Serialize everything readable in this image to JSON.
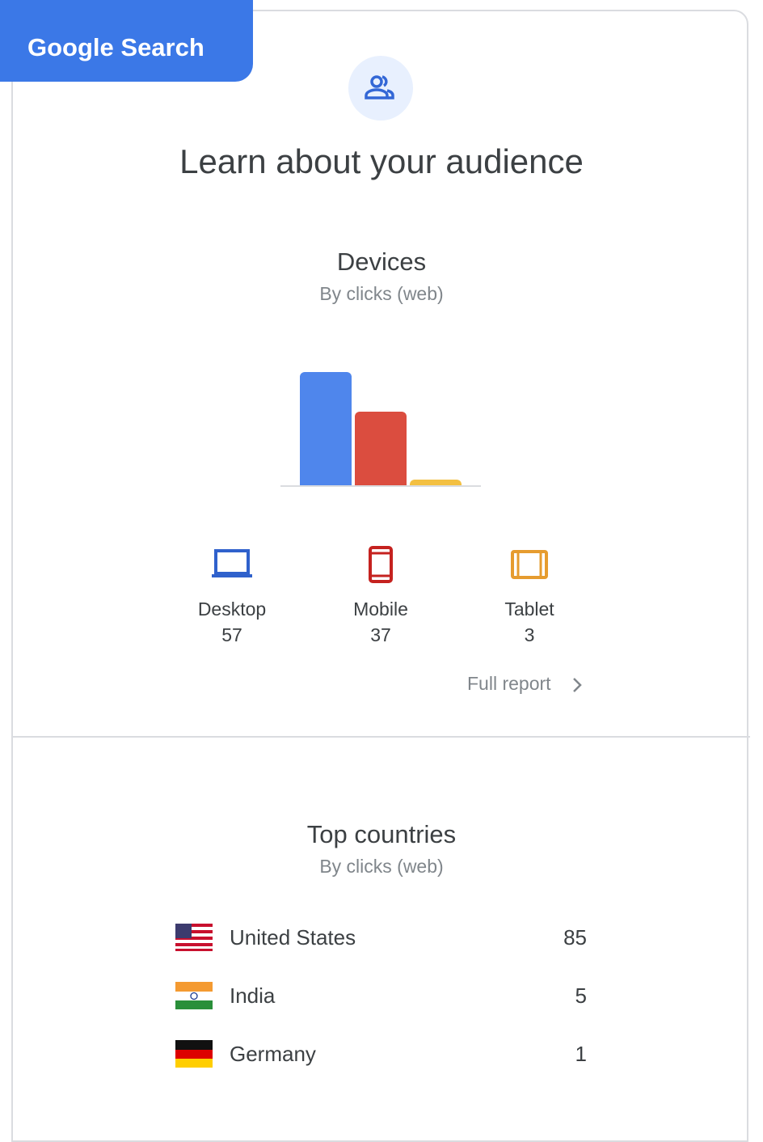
{
  "badge": "Google Search",
  "title": "Learn about your audience",
  "devices": {
    "title": "Devices",
    "subtitle": "By clicks (web)",
    "items": [
      {
        "label": "Desktop",
        "value": 57,
        "color": "#4f86ec"
      },
      {
        "label": "Mobile",
        "value": 37,
        "color": "#db4d3f"
      },
      {
        "label": "Tablet",
        "value": 3,
        "color": "#f3c042"
      }
    ],
    "link": "Full report"
  },
  "countries": {
    "title": "Top countries",
    "subtitle": "By clicks (web)",
    "rows": [
      {
        "name": "United States",
        "value": 85
      },
      {
        "name": "India",
        "value": 5
      },
      {
        "name": "Germany",
        "value": 1
      }
    ]
  }
}
